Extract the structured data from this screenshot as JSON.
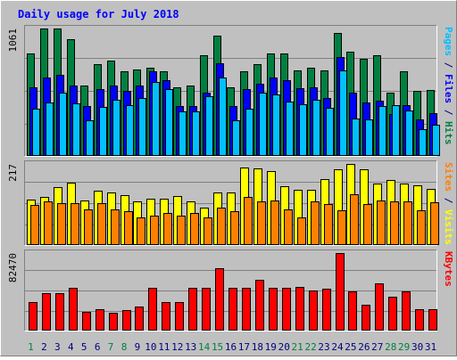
{
  "colors": {
    "frame": "#c0c0c0",
    "panel_bg": "#c0c0c0",
    "title": "#0000ff",
    "hits": "#008040",
    "files": "#0000ff",
    "pages": "#00c0ff",
    "visits": "#ffff00",
    "sites": "#ff8000",
    "kbytes": "#ff0000",
    "weekend_label": "#008040",
    "weekday_label": "#000080"
  },
  "chart_data": [
    {
      "type": "bar",
      "title": "Daily usage for July 2018",
      "categories": [
        "1",
        "2",
        "3",
        "4",
        "5",
        "6",
        "7",
        "8",
        "9",
        "10",
        "11",
        "12",
        "13",
        "14",
        "15",
        "16",
        "17",
        "18",
        "19",
        "20",
        "21",
        "22",
        "23",
        "24",
        "25",
        "26",
        "27",
        "28",
        "29",
        "30",
        "31"
      ],
      "weekend_days": [
        1,
        7,
        8,
        14,
        15,
        21,
        22,
        28,
        29
      ],
      "ymax_label": "1061",
      "ylim": [
        0,
        1061
      ],
      "ylabel_parts": [
        {
          "text": "Pages",
          "color_key": "pages"
        },
        {
          "text": " / ",
          "color_key": "weekday_label"
        },
        {
          "text": "Files",
          "color_key": "files"
        },
        {
          "text": " / ",
          "color_key": "weekday_label"
        },
        {
          "text": "Hits",
          "color_key": "hits"
        }
      ],
      "series": [
        {
          "name": "Hits",
          "color_key": "hits",
          "values": [
            850,
            1061,
            1060,
            975,
            580,
            760,
            795,
            700,
            720,
            730,
            700,
            565,
            580,
            835,
            1000,
            570,
            700,
            760,
            855,
            850,
            710,
            730,
            710,
            1020,
            865,
            810,
            835,
            520,
            700,
            540,
            545
          ]
        },
        {
          "name": "Files",
          "color_key": "files",
          "values": [
            570,
            650,
            670,
            580,
            410,
            550,
            585,
            540,
            580,
            700,
            630,
            410,
            410,
            520,
            770,
            410,
            550,
            600,
            650,
            630,
            560,
            570,
            480,
            820,
            520,
            440,
            455,
            340,
            420,
            300,
            350
          ]
        },
        {
          "name": "Pages",
          "color_key": "pages",
          "values": [
            385,
            440,
            520,
            435,
            295,
            405,
            460,
            420,
            480,
            610,
            550,
            365,
            365,
            490,
            650,
            290,
            390,
            520,
            505,
            450,
            425,
            465,
            395,
            710,
            305,
            300,
            410,
            420,
            375,
            215,
            255
          ]
        }
      ]
    },
    {
      "type": "bar",
      "ymax_label": "217",
      "ylim": [
        0,
        217
      ],
      "ylabel_parts": [
        {
          "text": "Sites",
          "color_key": "sites"
        },
        {
          "text": " / ",
          "color_key": "weekday_label"
        },
        {
          "text": "Visits",
          "color_key": "visits"
        }
      ],
      "series": [
        {
          "name": "Visits",
          "color_key": "visits",
          "values": [
            120,
            128,
            155,
            167,
            118,
            145,
            140,
            132,
            115,
            123,
            123,
            130,
            115,
            99,
            140,
            140,
            207,
            205,
            198,
            157,
            146,
            148,
            175,
            203,
            217,
            203,
            165,
            173,
            165,
            158,
            150
          ]
        },
        {
          "name": "Sites",
          "color_key": "sites",
          "values": [
            105,
            115,
            112,
            110,
            95,
            111,
            94,
            89,
            73,
            77,
            85,
            77,
            85,
            73,
            99,
            90,
            128,
            116,
            118,
            95,
            72,
            116,
            108,
            91,
            134,
            108,
            118,
            116,
            116,
            91,
            113
          ]
        }
      ]
    },
    {
      "type": "bar",
      "ymax_label": "82470",
      "ylim": [
        0,
        82470
      ],
      "ylabel_parts": [
        {
          "text": "KBytes",
          "color_key": "kbytes"
        }
      ],
      "series": [
        {
          "name": "KBytes",
          "color_key": "kbytes",
          "values": [
            29900,
            39000,
            39000,
            45500,
            19500,
            22000,
            18200,
            20800,
            24700,
            44800,
            29900,
            29250,
            45500,
            44800,
            66300,
            44800,
            45500,
            53300,
            44800,
            44800,
            46150,
            42250,
            44150,
            82470,
            40950,
            26650,
            50050,
            35100,
            40950,
            22100,
            22100
          ]
        }
      ]
    }
  ]
}
